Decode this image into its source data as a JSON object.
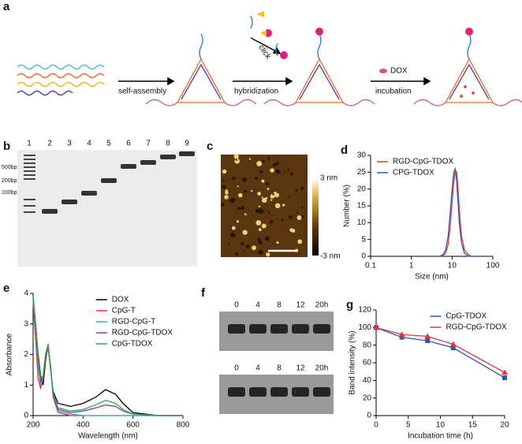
{
  "schematic": {
    "panel_label": "a",
    "steps": [
      "self-assembly",
      "hybridization",
      "incubation"
    ],
    "click": "click",
    "dox": "DOX"
  },
  "gel_b": {
    "panel_label": "b",
    "lanes": [
      "1",
      "2",
      "3",
      "4",
      "5",
      "6",
      "7",
      "8",
      "9"
    ],
    "markers": [
      "500bp",
      "200bp",
      "100bp"
    ]
  },
  "afm_c": {
    "panel_label": "c",
    "scale_max": "3 nm",
    "scale_min": "-3 nm"
  },
  "gel_f": {
    "panel_label": "f",
    "rows": [
      [
        "0",
        "4",
        "8",
        "12",
        "20h"
      ],
      [
        "0",
        "4",
        "8",
        "12",
        "20h"
      ]
    ]
  },
  "chart_data": [
    {
      "type": "line",
      "panel_label": "d",
      "x_label": "Size (nm)",
      "y_label": "Number (%)",
      "xscale": "log",
      "x": [
        5,
        6,
        7,
        8,
        9,
        10,
        11,
        12,
        13,
        14,
        15,
        17,
        20,
        25,
        30,
        40
      ],
      "series": [
        {
          "name": "RGD-CpG-TDOX",
          "color": "#e8333a",
          "values": [
            0,
            0.2,
            1,
            3.5,
            9,
            16,
            22,
            25.5,
            25,
            20,
            14,
            6,
            2,
            0.5,
            0,
            0
          ]
        },
        {
          "name": "CPG-TDOX",
          "color": "#2a5caa",
          "values": [
            0,
            0.5,
            2,
            6,
            13,
            20,
            25,
            26,
            22,
            16,
            10,
            4,
            1,
            0,
            0,
            0
          ]
        }
      ],
      "xlim": [
        0.1,
        100
      ],
      "xticks": [
        0.1,
        1,
        10,
        100
      ],
      "ylim": [
        0,
        30
      ],
      "yticks": [
        0,
        5,
        10,
        15,
        20,
        25,
        30
      ],
      "legend": "top-left"
    },
    {
      "type": "line",
      "panel_label": "e",
      "x_label": "Wavelength (nm)",
      "y_label": "Absorbance",
      "x": [
        200,
        210,
        220,
        230,
        240,
        250,
        260,
        270,
        280,
        300,
        350,
        400,
        450,
        490,
        530,
        560,
        600,
        700,
        800
      ],
      "series": [
        {
          "name": "DOX",
          "color": "#000000",
          "values": [
            3.9,
            3.0,
            2.0,
            1.3,
            1.0,
            1.8,
            2.3,
            1.5,
            0.8,
            0.4,
            0.3,
            0.4,
            0.6,
            0.85,
            0.7,
            0.4,
            0.1,
            0,
            0
          ]
        },
        {
          "name": "CpG-T",
          "color": "#e8333a",
          "values": [
            3.7,
            2.5,
            1.2,
            0.9,
            1.2,
            1.9,
            2.2,
            1.6,
            0.6,
            0.1,
            0,
            0,
            0,
            0,
            0,
            0,
            0,
            0,
            0
          ]
        },
        {
          "name": "RGD-CpG-T",
          "color": "#2aa9e0",
          "values": [
            3.8,
            2.8,
            1.6,
            1.0,
            1.3,
            2.0,
            2.3,
            1.6,
            0.7,
            0.15,
            0.05,
            0,
            0,
            0,
            0,
            0,
            0,
            0,
            0
          ]
        },
        {
          "name": "RGD-CpG-TDOX",
          "color": "#7b3fa0",
          "values": [
            3.8,
            2.9,
            1.8,
            1.1,
            1.3,
            2.0,
            2.3,
            1.6,
            0.7,
            0.2,
            0.1,
            0.15,
            0.25,
            0.35,
            0.3,
            0.15,
            0.05,
            0,
            0
          ]
        },
        {
          "name": "CpG-TDOX",
          "color": "#2da84a",
          "values": [
            3.9,
            3.0,
            1.9,
            1.2,
            1.3,
            2.0,
            2.35,
            1.6,
            0.75,
            0.25,
            0.15,
            0.2,
            0.35,
            0.5,
            0.4,
            0.2,
            0.05,
            0,
            0
          ]
        }
      ],
      "xlim": [
        200,
        800
      ],
      "xticks": [
        200,
        400,
        600,
        800
      ],
      "ylim": [
        0,
        4
      ],
      "yticks": [
        0,
        1,
        2,
        3,
        4
      ],
      "legend": "top-right"
    },
    {
      "type": "line",
      "panel_label": "g",
      "x_label": "Incubation time (h)",
      "y_label": "Band intensity (%)",
      "x": [
        0,
        4,
        8,
        12,
        20
      ],
      "series": [
        {
          "name": "CpG-TDOX",
          "color": "#2a5caa",
          "marker": "square",
          "values": [
            100,
            89,
            85,
            77,
            43
          ]
        },
        {
          "name": "RGD-CpG-TDOX",
          "color": "#e8333a",
          "marker": "triangle",
          "values": [
            100,
            92,
            90,
            81,
            49
          ]
        }
      ],
      "xlim": [
        0,
        20
      ],
      "xticks": [
        0,
        5,
        10,
        15,
        20
      ],
      "ylim": [
        0,
        120
      ],
      "yticks": [
        0,
        20,
        40,
        60,
        80,
        100,
        120
      ],
      "legend": "top-right"
    }
  ]
}
